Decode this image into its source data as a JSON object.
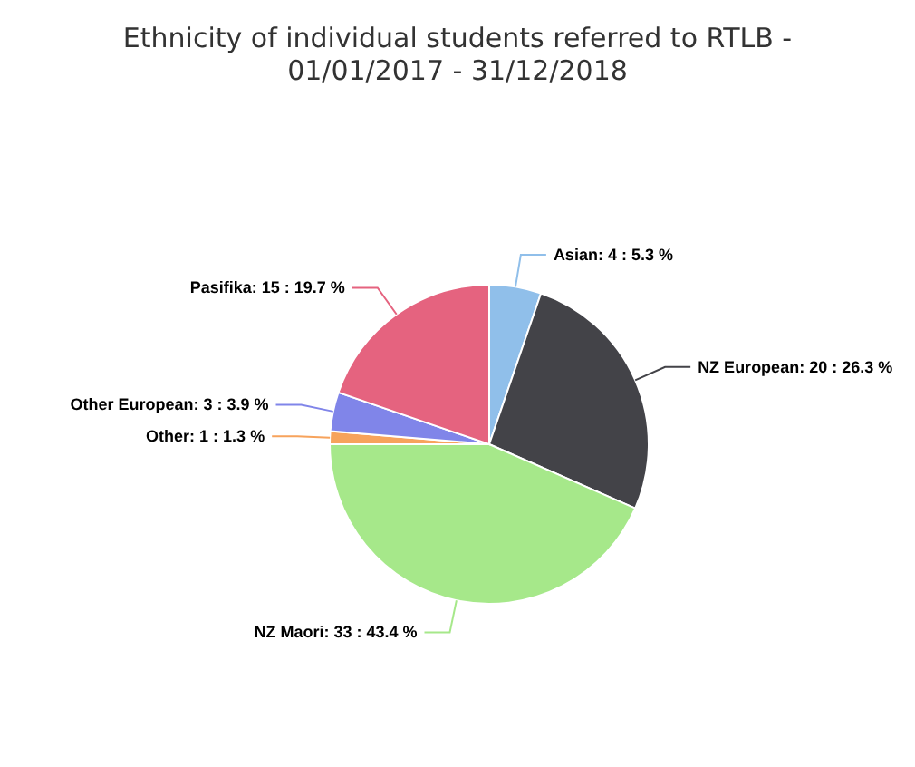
{
  "chart_data": {
    "type": "pie",
    "title": "Ethnicity of individual students referred to RTLB - 01/01/2017 - 31/12/2018",
    "categories": [
      "Asian",
      "NZ European",
      "NZ Maori",
      "Other",
      "Other European",
      "Pasifika"
    ],
    "values": [
      4,
      20,
      33,
      1,
      3,
      15
    ],
    "value_labels": [
      "4 : 5.3 %",
      "20 : 26.3 %",
      "33 : 43.4 %",
      "1 : 1.3 %",
      "3 : 3.9 %",
      "15 : 19.7 %"
    ],
    "colors": [
      "#90bfea",
      "#434348",
      "#a6e88a",
      "#f7a35c",
      "#8085e9",
      "#e5637f"
    ],
    "legend": false
  }
}
